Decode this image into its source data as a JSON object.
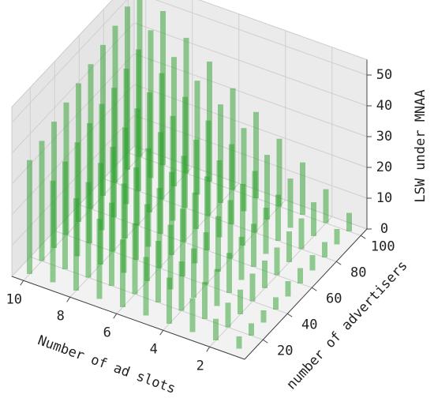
{
  "chart_data": {
    "type": "bar3d",
    "xlabel": "Number of ad slots",
    "ylabel": "number of advertisers",
    "zlabel": "LSW under MNAA",
    "x": [
      1,
      2,
      3,
      4,
      5,
      6,
      7,
      8,
      9,
      10
    ],
    "y": [
      10,
      20,
      30,
      40,
      50,
      60,
      70,
      80,
      90,
      100
    ],
    "values": [
      [
        4,
        4,
        4,
        4,
        5,
        5,
        5,
        5,
        5,
        6
      ],
      [
        7,
        8,
        8,
        9,
        9,
        9,
        10,
        10,
        11,
        11
      ],
      [
        11,
        12,
        12,
        13,
        14,
        14,
        15,
        15,
        16,
        17
      ],
      [
        15,
        16,
        16,
        17,
        18,
        19,
        20,
        20,
        21,
        22
      ],
      [
        19,
        20,
        21,
        22,
        23,
        24,
        25,
        26,
        27,
        28
      ],
      [
        22,
        23,
        25,
        26,
        27,
        28,
        29,
        31,
        32,
        33
      ],
      [
        26,
        27,
        29,
        30,
        32,
        33,
        34,
        36,
        37,
        39
      ],
      [
        30,
        31,
        33,
        34,
        36,
        38,
        39,
        41,
        42,
        44
      ],
      [
        33,
        35,
        37,
        39,
        41,
        42,
        44,
        46,
        48,
        50
      ],
      [
        37,
        39,
        41,
        43,
        45,
        47,
        49,
        51,
        53,
        55
      ]
    ],
    "color": "#2ca02c",
    "xlim": [
      0.5,
      10.5
    ],
    "xticks": [
      2,
      4,
      6,
      8,
      10
    ],
    "ylim": [
      5,
      105
    ],
    "yticks": [
      20,
      40,
      60,
      80,
      100
    ],
    "zlim": [
      0,
      55
    ],
    "zticks": [
      0,
      10,
      20,
      30,
      40,
      50
    ],
    "grid": true
  }
}
